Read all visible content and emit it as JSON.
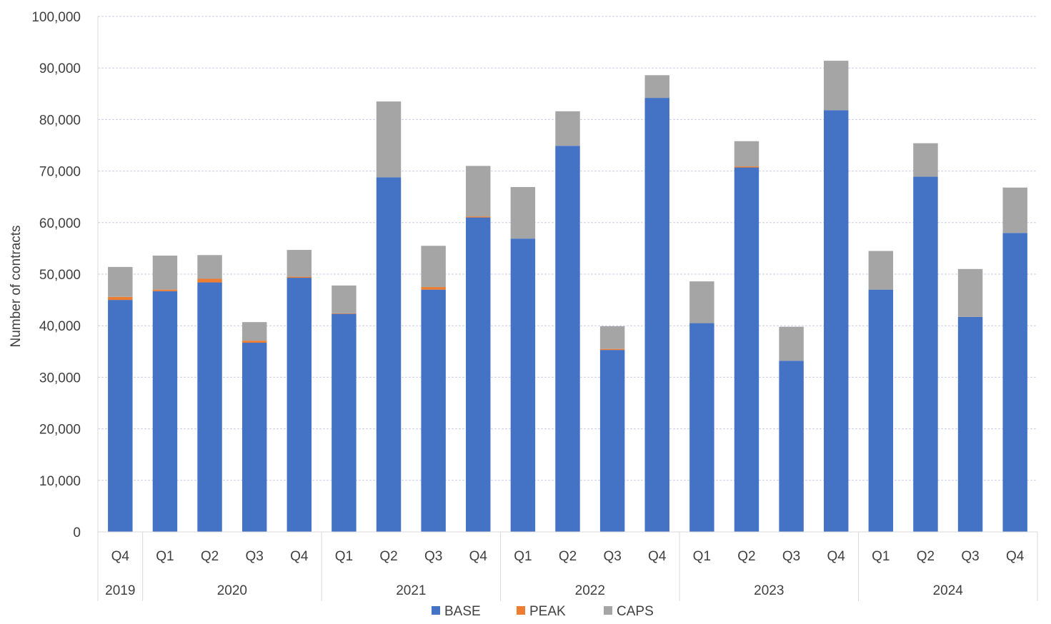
{
  "chart_data": {
    "type": "bar",
    "stacked": true,
    "ylabel": "Number of contracts",
    "ylim": [
      0,
      100000
    ],
    "yticks": [
      0,
      10000,
      20000,
      30000,
      40000,
      50000,
      60000,
      70000,
      80000,
      90000,
      100000
    ],
    "ytick_labels": [
      "0",
      "10,000",
      "20,000",
      "30,000",
      "40,000",
      "50,000",
      "60,000",
      "70,000",
      "80,000",
      "90,000",
      "100,000"
    ],
    "grid": true,
    "legend_position": "bottom",
    "categories": [
      "Q4",
      "Q1",
      "Q2",
      "Q3",
      "Q4",
      "Q1",
      "Q2",
      "Q3",
      "Q4",
      "Q1",
      "Q2",
      "Q3",
      "Q4",
      "Q1",
      "Q2",
      "Q3",
      "Q4",
      "Q1",
      "Q2",
      "Q3",
      "Q4"
    ],
    "groups": [
      {
        "label": "2019",
        "count": 1
      },
      {
        "label": "2020",
        "count": 4
      },
      {
        "label": "2021",
        "count": 4
      },
      {
        "label": "2022",
        "count": 4
      },
      {
        "label": "2023",
        "count": 4
      },
      {
        "label": "2024",
        "count": 4
      }
    ],
    "series": [
      {
        "name": "BASE",
        "color": "#4472c4",
        "values": [
          45000,
          46700,
          48400,
          36700,
          49300,
          42300,
          68800,
          47000,
          61000,
          56900,
          74900,
          35300,
          84200,
          40500,
          70700,
          33200,
          81800,
          47000,
          68900,
          41700,
          58000
        ]
      },
      {
        "name": "PEAK",
        "color": "#ed7d31",
        "values": [
          600,
          300,
          700,
          400,
          200,
          100,
          0,
          500,
          200,
          0,
          0,
          200,
          0,
          0,
          200,
          0,
          0,
          0,
          0,
          0,
          0
        ]
      },
      {
        "name": "CAPS",
        "color": "#a5a5a5",
        "values": [
          5800,
          6600,
          4600,
          3600,
          5200,
          5400,
          14700,
          8000,
          9800,
          10000,
          6700,
          4400,
          4400,
          8100,
          4900,
          6600,
          9600,
          7500,
          6500,
          9300,
          8800
        ]
      }
    ]
  }
}
